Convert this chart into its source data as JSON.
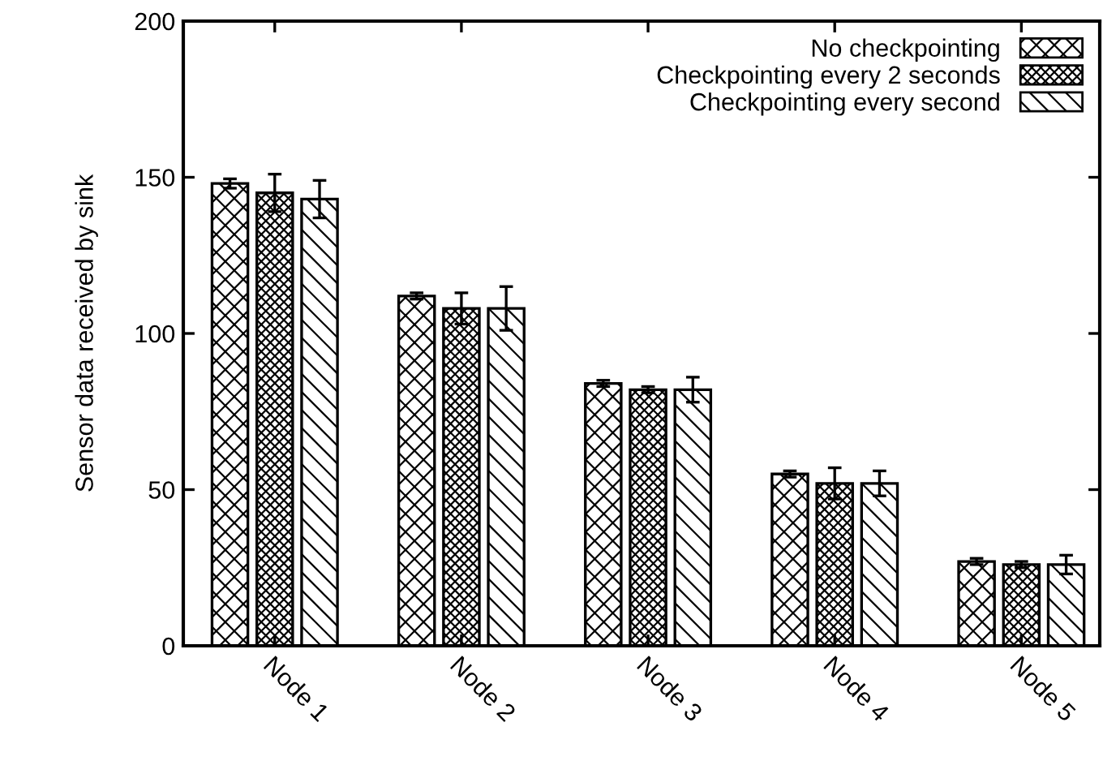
{
  "chart_data": {
    "type": "bar",
    "ylabel": "Sensor data received by sink",
    "categories": [
      "Node 1",
      "Node 2",
      "Node 3",
      "Node 4",
      "Node 5"
    ],
    "series": [
      {
        "name": "No checkpointing",
        "color": "#000000",
        "values": [
          148,
          112,
          84,
          55,
          27
        ],
        "errors": [
          1.5,
          1,
          1,
          1,
          1
        ]
      },
      {
        "name": "Checkpointing every 2 seconds",
        "color": "#000000",
        "values": [
          145,
          108,
          82,
          52,
          26
        ],
        "errors": [
          6,
          5,
          1,
          5,
          1
        ]
      },
      {
        "name": "Checkpointing every second",
        "color": "#000000",
        "values": [
          143,
          108,
          82,
          52,
          26
        ],
        "errors": [
          6,
          7,
          4,
          4,
          3
        ]
      }
    ],
    "ylim": [
      0,
      200
    ],
    "yticks": [
      0,
      50,
      100,
      150,
      200
    ],
    "grid": false,
    "legend": "top right"
  }
}
